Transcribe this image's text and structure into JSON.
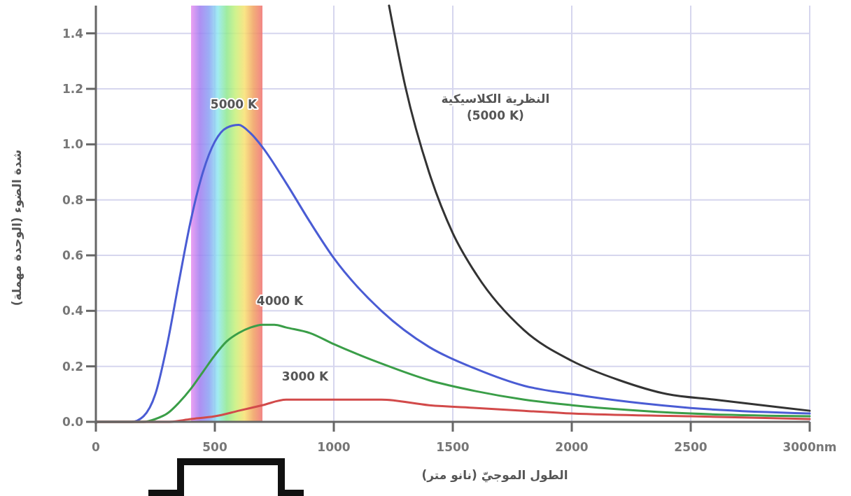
{
  "chart_data": {
    "type": "line",
    "xlabel": "الطول الموجيّ (نانو متر)",
    "ylabel": "شدة الضوء (الوحدة مهملة)",
    "xlim": [
      0,
      3000
    ],
    "ylim": [
      0,
      1.5
    ],
    "xticks": [
      0,
      500,
      1000,
      1500,
      2000,
      2500,
      {
        "value": 3000,
        "label": "3000nm"
      }
    ],
    "yticks": [
      {
        "value": 0,
        "label": "0.0"
      },
      0.2,
      0.4,
      0.6,
      0.8,
      {
        "value": 1,
        "label": "1.0"
      },
      1.2,
      1.4
    ],
    "grid": true,
    "marker": "none",
    "line_style": "solid",
    "bands": [
      {
        "axis": "x",
        "from": 400,
        "to": 700
      }
    ],
    "series": [
      {
        "name": "5000 K",
        "color": "#4a5cd4",
        "x": [
          0,
          100,
          150,
          200,
          250,
          300,
          350,
          400,
          450,
          500,
          550,
          600,
          650,
          700,
          800,
          900,
          1000,
          1200,
          1400,
          1600,
          1800,
          2000,
          2500,
          3000
        ],
        "values": [
          0,
          0,
          0,
          0.02,
          0.1,
          0.28,
          0.51,
          0.73,
          0.9,
          1.01,
          1.06,
          1.07,
          1.04,
          0.99,
          0.86,
          0.72,
          0.59,
          0.4,
          0.27,
          0.19,
          0.13,
          0.1,
          0.05,
          0.03
        ]
      },
      {
        "name": "4000 K",
        "color": "#3a9e48",
        "x": [
          0,
          150,
          200,
          250,
          300,
          350,
          400,
          450,
          500,
          550,
          600,
          650,
          700,
          750,
          800,
          900,
          1000,
          1200,
          1400,
          1600,
          1800,
          2000,
          2500,
          3000
        ],
        "values": [
          0,
          0,
          0,
          0.01,
          0.03,
          0.07,
          0.12,
          0.18,
          0.24,
          0.29,
          0.32,
          0.34,
          0.35,
          0.35,
          0.34,
          0.32,
          0.28,
          0.21,
          0.15,
          0.11,
          0.08,
          0.06,
          0.03,
          0.02
        ]
      },
      {
        "name": "3000 K",
        "color": "#d24a4a",
        "x": [
          0,
          200,
          300,
          400,
          500,
          600,
          700,
          800,
          900,
          1000,
          1100,
          1200,
          1400,
          1600,
          1800,
          2000,
          2500,
          3000
        ],
        "values": [
          0,
          0,
          0,
          0.01,
          0.02,
          0.04,
          0.06,
          0.08,
          0.08,
          0.08,
          0.08,
          0.08,
          0.06,
          0.05,
          0.04,
          0.03,
          0.02,
          0.01
        ]
      },
      {
        "name": "النظرية الكلاسيكية\n(5000 K)",
        "color": "#333333",
        "x": [
          1232,
          1300,
          1400,
          1500,
          1600,
          1800,
          2000,
          2200,
          2400,
          2600,
          2800,
          3000
        ],
        "values": [
          1.5,
          1.21,
          0.9,
          0.68,
          0.53,
          0.33,
          0.22,
          0.15,
          0.1,
          0.08,
          0.06,
          0.04
        ]
      }
    ]
  }
}
